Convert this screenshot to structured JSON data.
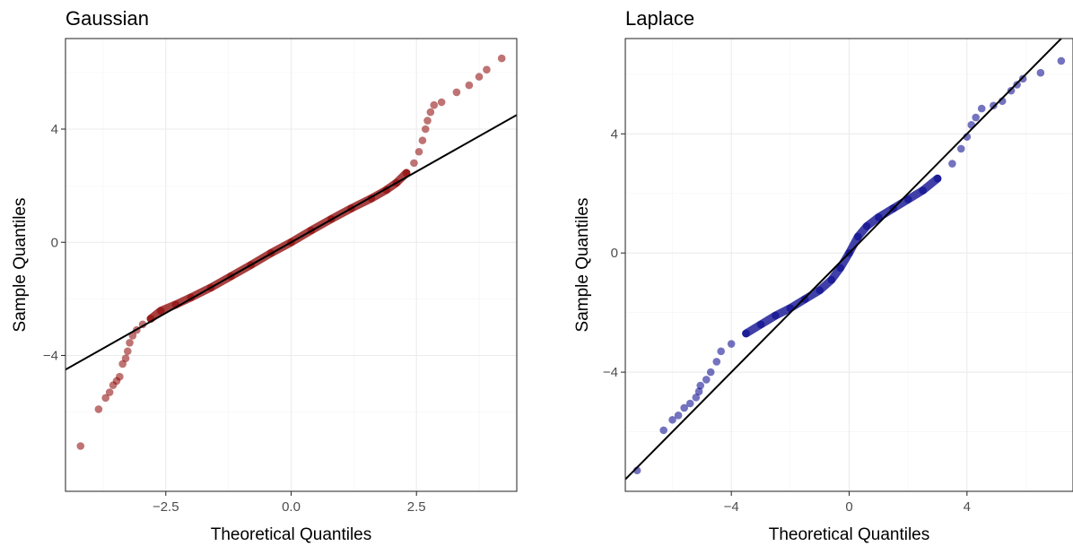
{
  "chart_data": [
    {
      "type": "scatter",
      "title": "Gaussian",
      "xlabel": "Theoretical Quantiles",
      "ylabel": "Sample Quantiles",
      "xlim": [
        -4.5,
        4.5
      ],
      "ylim": [
        -8.8,
        7.2
      ],
      "x_ticks": [
        -2.5,
        0.0,
        2.5
      ],
      "x_tick_labels": [
        "−2.5",
        "0.0",
        "2.5"
      ],
      "y_ticks": [
        -4,
        0,
        4
      ],
      "y_tick_labels": [
        "−4",
        "0",
        "4"
      ],
      "grid": true,
      "point_color": "#8b0000",
      "reference_line": {
        "slope": 1.0,
        "intercept": 0.0
      },
      "points": [
        [
          -4.2,
          -7.2
        ],
        [
          -3.84,
          -5.9
        ],
        [
          -3.7,
          -5.5
        ],
        [
          -3.62,
          -5.3
        ],
        [
          -3.55,
          -5.05
        ],
        [
          -3.48,
          -4.9
        ],
        [
          -3.42,
          -4.75
        ],
        [
          -3.36,
          -4.3
        ],
        [
          -3.3,
          -4.1
        ],
        [
          -3.26,
          -3.85
        ],
        [
          -3.22,
          -3.55
        ],
        [
          -3.16,
          -3.3
        ],
        [
          -3.08,
          -3.1
        ],
        [
          -2.96,
          -2.9
        ],
        [
          -2.8,
          -2.7
        ],
        [
          -2.6,
          -2.42
        ],
        [
          -2.3,
          -2.2
        ],
        [
          -2.0,
          -1.95
        ],
        [
          -1.6,
          -1.6
        ],
        [
          -1.2,
          -1.2
        ],
        [
          -0.8,
          -0.8
        ],
        [
          -0.4,
          -0.38
        ],
        [
          0.0,
          0.0
        ],
        [
          0.4,
          0.42
        ],
        [
          0.8,
          0.82
        ],
        [
          1.2,
          1.2
        ],
        [
          1.6,
          1.55
        ],
        [
          1.9,
          1.85
        ],
        [
          2.1,
          2.1
        ],
        [
          2.3,
          2.45
        ],
        [
          2.45,
          2.8
        ],
        [
          2.55,
          3.2
        ],
        [
          2.62,
          3.6
        ],
        [
          2.68,
          4.0
        ],
        [
          2.72,
          4.3
        ],
        [
          2.78,
          4.6
        ],
        [
          2.85,
          4.85
        ],
        [
          3.0,
          4.95
        ],
        [
          3.3,
          5.3
        ],
        [
          3.55,
          5.55
        ],
        [
          3.75,
          5.85
        ],
        [
          3.9,
          6.1
        ],
        [
          4.2,
          6.5
        ]
      ]
    },
    {
      "type": "scatter",
      "title": "Laplace",
      "xlabel": "Theoretical Quantiles",
      "ylabel": "Sample Quantiles",
      "xlim": [
        -7.6,
        7.6
      ],
      "ylim": [
        -8.0,
        7.2
      ],
      "x_ticks": [
        -4,
        0,
        4
      ],
      "x_tick_labels": [
        "−4",
        "0",
        "4"
      ],
      "y_ticks": [
        -4,
        0,
        4
      ],
      "y_tick_labels": [
        "−4",
        "0",
        "4"
      ],
      "grid": true,
      "point_color": "#00008b",
      "reference_line": {
        "slope": 1.0,
        "intercept": 0.0
      },
      "points": [
        [
          -7.2,
          -7.3
        ],
        [
          -6.3,
          -5.95
        ],
        [
          -6.0,
          -5.6
        ],
        [
          -5.8,
          -5.45
        ],
        [
          -5.6,
          -5.2
        ],
        [
          -5.4,
          -5.05
        ],
        [
          -5.2,
          -4.85
        ],
        [
          -5.1,
          -4.65
        ],
        [
          -5.05,
          -4.45
        ],
        [
          -4.85,
          -4.25
        ],
        [
          -4.7,
          -4.0
        ],
        [
          -4.5,
          -3.65
        ],
        [
          -4.35,
          -3.3
        ],
        [
          -4.0,
          -3.05
        ],
        [
          -3.5,
          -2.7
        ],
        [
          -3.0,
          -2.4
        ],
        [
          -2.5,
          -2.1
        ],
        [
          -2.0,
          -1.85
        ],
        [
          -1.5,
          -1.55
        ],
        [
          -1.0,
          -1.25
        ],
        [
          -0.6,
          -0.9
        ],
        [
          -0.3,
          -0.5
        ],
        [
          0.0,
          0.0
        ],
        [
          0.3,
          0.55
        ],
        [
          0.6,
          0.9
        ],
        [
          1.0,
          1.2
        ],
        [
          1.5,
          1.5
        ],
        [
          2.0,
          1.8
        ],
        [
          2.5,
          2.1
        ],
        [
          3.0,
          2.5
        ],
        [
          3.5,
          3.0
        ],
        [
          3.8,
          3.5
        ],
        [
          4.0,
          3.9
        ],
        [
          4.15,
          4.3
        ],
        [
          4.3,
          4.55
        ],
        [
          4.5,
          4.85
        ],
        [
          4.9,
          4.95
        ],
        [
          5.2,
          5.1
        ],
        [
          5.5,
          5.45
        ],
        [
          5.7,
          5.65
        ],
        [
          5.9,
          5.85
        ],
        [
          6.5,
          6.05
        ],
        [
          7.2,
          6.45
        ]
      ]
    }
  ]
}
